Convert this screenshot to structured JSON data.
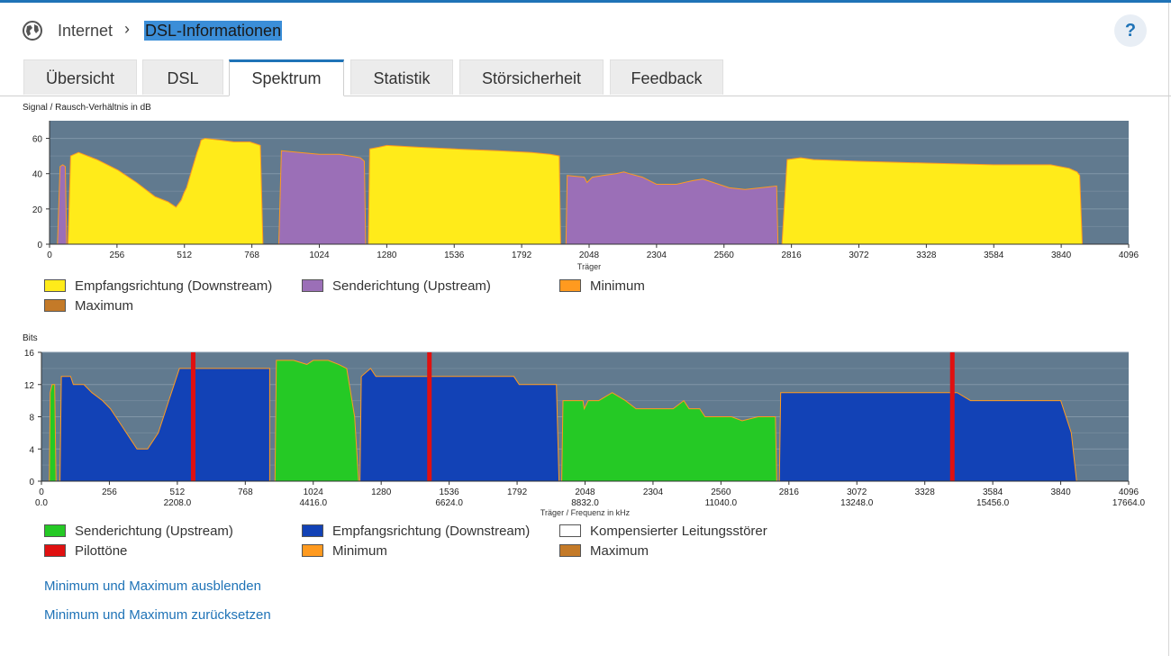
{
  "breadcrumb": {
    "parent": "Internet",
    "separator": "›",
    "current": "DSL-Informationen"
  },
  "help_label": "?",
  "tabs": [
    {
      "label": "Übersicht"
    },
    {
      "label": "DSL"
    },
    {
      "label": "Spektrum"
    },
    {
      "label": "Statistik"
    },
    {
      "label": "Störsicherheit"
    },
    {
      "label": "Feedback"
    }
  ],
  "active_tab": "Spektrum",
  "colors": {
    "accent": "#1f73b7",
    "plot_bg": "#617a8f",
    "downstream_snr": "#ffeb1a",
    "upstream_snr": "#9b6fb7",
    "minimum": "#ff9a1f",
    "maximum": "#c47a28",
    "upstream_bits": "#25c925",
    "downstream_bits": "#1242b6",
    "pilot": "#e01010"
  },
  "chart_data": [
    {
      "type": "area",
      "title": "Signal / Rausch-Verhältnis in dB",
      "xlabel": "Träger",
      "ylabel": "",
      "xlim": [
        0,
        4096
      ],
      "ylim": [
        0,
        70
      ],
      "x_ticks": [
        0,
        256,
        512,
        768,
        1024,
        1280,
        1536,
        1792,
        2048,
        2304,
        2560,
        2816,
        3072,
        3328,
        3584,
        3840,
        4096
      ],
      "y_ticks": [
        0,
        20,
        40,
        60
      ],
      "grid": true,
      "series": [
        {
          "name": "Empfangsrichtung (Downstream)",
          "color": "#ffeb1a",
          "bands": [
            [
              [
                70,
                0
              ],
              [
                80,
                50
              ],
              [
                110,
                52
              ],
              [
                180,
                48
              ],
              [
                260,
                42
              ],
              [
                330,
                35
              ],
              [
                400,
                27
              ],
              [
                450,
                24
              ],
              [
                480,
                21
              ],
              [
                500,
                25
              ],
              [
                510,
                29
              ],
              [
                520,
                32
              ],
              [
                540,
                42
              ],
              [
                560,
                52
              ],
              [
                570,
                56
              ],
              [
                575,
                59
              ],
              [
                590,
                60
              ],
              [
                650,
                59
              ],
              [
                700,
                58
              ],
              [
                760,
                58
              ],
              [
                780,
                57
              ],
              [
                800,
                56
              ],
              [
                810,
                0
              ]
            ],
            [
              [
                1210,
                0
              ],
              [
                1215,
                54
              ],
              [
                1250,
                55
              ],
              [
                1280,
                56
              ],
              [
                1400,
                55
              ],
              [
                1536,
                54
              ],
              [
                1700,
                53
              ],
              [
                1830,
                52
              ],
              [
                1900,
                51
              ],
              [
                1935,
                50
              ],
              [
                1940,
                0
              ]
            ],
            [
              [
                2780,
                0
              ],
              [
                2800,
                48
              ],
              [
                2850,
                49
              ],
              [
                2900,
                48
              ],
              [
                3072,
                47
              ],
              [
                3328,
                46
              ],
              [
                3584,
                45
              ],
              [
                3800,
                45
              ],
              [
                3870,
                43
              ],
              [
                3900,
                41
              ],
              [
                3910,
                39
              ],
              [
                3920,
                0
              ]
            ]
          ]
        },
        {
          "name": "Senderichtung (Upstream)",
          "color": "#9b6fb7",
          "bands": [
            [
              [
                30,
                0
              ],
              [
                40,
                44
              ],
              [
                50,
                45
              ],
              [
                60,
                44
              ],
              [
                65,
                0
              ]
            ],
            [
              [
                870,
                0
              ],
              [
                880,
                53
              ],
              [
                950,
                52
              ],
              [
                1024,
                51
              ],
              [
                1100,
                51
              ],
              [
                1140,
                50
              ],
              [
                1180,
                49
              ],
              [
                1195,
                47
              ],
              [
                1200,
                0
              ]
            ],
            [
              [
                1960,
                0
              ],
              [
                1965,
                39
              ],
              [
                2030,
                38
              ],
              [
                2040,
                35
              ],
              [
                2060,
                38
              ],
              [
                2100,
                39
              ],
              [
                2150,
                40
              ],
              [
                2180,
                41
              ],
              [
                2200,
                40
              ],
              [
                2250,
                38
              ],
              [
                2304,
                34
              ],
              [
                2380,
                34
              ],
              [
                2440,
                36
              ],
              [
                2480,
                37
              ],
              [
                2540,
                34
              ],
              [
                2580,
                32
              ],
              [
                2640,
                31
              ],
              [
                2700,
                32
              ],
              [
                2760,
                33
              ],
              [
                2765,
                0
              ]
            ]
          ]
        }
      ],
      "overlays": [
        {
          "name": "Minimum",
          "color": "#ff9a1f"
        },
        {
          "name": "Maximum",
          "color": "#c47a28"
        }
      ]
    },
    {
      "type": "area",
      "title": "Bits",
      "xlabel": "Träger / Frequenz in kHz",
      "ylabel": "",
      "xlim": [
        0,
        4096
      ],
      "ylim": [
        0,
        16
      ],
      "x_ticks": [
        0,
        256,
        512,
        768,
        1024,
        1280,
        1536,
        1792,
        2048,
        2304,
        2560,
        2816,
        3072,
        3328,
        3584,
        3840,
        4096
      ],
      "freq_labels": [
        "0.0",
        "2208.0",
        "4416.0",
        "6624.0",
        "8832.0",
        "11040.0",
        "13248.0",
        "15456.0",
        "17664.0"
      ],
      "y_ticks": [
        0,
        4,
        8,
        12,
        16
      ],
      "grid": true,
      "series": [
        {
          "name": "Senderichtung (Upstream)",
          "color": "#25c925",
          "bands": [
            [
              [
                30,
                0
              ],
              [
                33,
                11
              ],
              [
                40,
                12
              ],
              [
                50,
                12
              ],
              [
                55,
                0
              ]
            ],
            [
              [
                880,
                0
              ],
              [
                885,
                15
              ],
              [
                950,
                15
              ],
              [
                1000,
                14.5
              ],
              [
                1024,
                15
              ],
              [
                1080,
                15
              ],
              [
                1120,
                14.5
              ],
              [
                1150,
                14
              ],
              [
                1180,
                8
              ],
              [
                1195,
                0
              ]
            ],
            [
              [
                1960,
                0
              ],
              [
                1965,
                10
              ],
              [
                2040,
                10
              ],
              [
                2045,
                9
              ],
              [
                2060,
                10
              ],
              [
                2100,
                10
              ],
              [
                2150,
                11
              ],
              [
                2200,
                10
              ],
              [
                2240,
                9
              ],
              [
                2304,
                9
              ],
              [
                2380,
                9
              ],
              [
                2420,
                10
              ],
              [
                2440,
                9
              ],
              [
                2480,
                9
              ],
              [
                2500,
                8
              ],
              [
                2600,
                8
              ],
              [
                2640,
                7.5
              ],
              [
                2700,
                8
              ],
              [
                2765,
                8
              ],
              [
                2770,
                0
              ]
            ]
          ]
        },
        {
          "name": "Empfangsrichtung (Downstream)",
          "color": "#1242b6",
          "bands": [
            [
              [
                70,
                0
              ],
              [
                75,
                13
              ],
              [
                110,
                13
              ],
              [
                120,
                12
              ],
              [
                160,
                12
              ],
              [
                190,
                11
              ],
              [
                230,
                10
              ],
              [
                260,
                9
              ],
              [
                280,
                8
              ],
              [
                300,
                7
              ],
              [
                320,
                6
              ],
              [
                340,
                5
              ],
              [
                360,
                4
              ],
              [
                400,
                4
              ],
              [
                420,
                5
              ],
              [
                440,
                6
              ],
              [
                460,
                8
              ],
              [
                480,
                10
              ],
              [
                500,
                12
              ],
              [
                520,
                14
              ],
              [
                560,
                14
              ],
              [
                820,
                14
              ],
              [
                860,
                14
              ],
              [
                860,
                0
              ]
            ],
            [
              [
                1200,
                0
              ],
              [
                1205,
                13
              ],
              [
                1240,
                14
              ],
              [
                1260,
                13
              ],
              [
                1536,
                13
              ],
              [
                1780,
                13
              ],
              [
                1800,
                12
              ],
              [
                1940,
                12
              ],
              [
                1950,
                0
              ]
            ],
            [
              [
                2780,
                0
              ],
              [
                2785,
                11
              ],
              [
                3072,
                11
              ],
              [
                3328,
                11
              ],
              [
                3450,
                11
              ],
              [
                3500,
                10
              ],
              [
                3840,
                10
              ],
              [
                3880,
                6
              ],
              [
                3900,
                0
              ]
            ]
          ]
        },
        {
          "name": "Pilottöne",
          "color": "#e01010",
          "x": [
            570,
            1460,
            3430
          ]
        }
      ],
      "legend": [
        {
          "name": "Senderichtung (Upstream)",
          "color": "#25c925"
        },
        {
          "name": "Empfangsrichtung (Downstream)",
          "color": "#1242b6"
        },
        {
          "name": "Kompensierter Leitungsstörer",
          "color": "#ffffff"
        },
        {
          "name": "Pilottöne",
          "color": "#e01010"
        },
        {
          "name": "Minimum",
          "color": "#ff9a1f"
        },
        {
          "name": "Maximum",
          "color": "#c47a28"
        }
      ]
    }
  ],
  "legend1": [
    {
      "name": "Empfangsrichtung (Downstream)",
      "color": "#ffeb1a"
    },
    {
      "name": "Senderichtung (Upstream)",
      "color": "#9b6fb7"
    },
    {
      "name": "Minimum",
      "color": "#ff9a1f"
    },
    {
      "name": "Maximum",
      "color": "#c47a28"
    }
  ],
  "links": {
    "hide_minmax": "Minimum und Maximum ausblenden",
    "reset_minmax": "Minimum und Maximum zurücksetzen"
  }
}
